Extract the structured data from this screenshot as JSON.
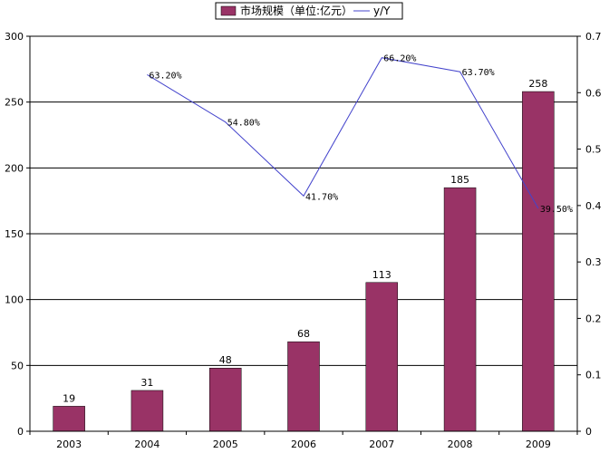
{
  "chart_data": {
    "type": "bar",
    "categories": [
      "2003",
      "2004",
      "2005",
      "2006",
      "2007",
      "2008",
      "2009"
    ],
    "series": [
      {
        "name": "市场规模（单位:亿元）",
        "type": "bar",
        "axis": "left",
        "color": "#993366",
        "values": [
          19,
          31,
          48,
          68,
          113,
          185,
          258
        ],
        "labels": [
          "19",
          "31",
          "48",
          "68",
          "113",
          "185",
          "258"
        ]
      },
      {
        "name": "y/Y",
        "type": "line",
        "axis": "right",
        "color": "#4444cc",
        "values": [
          null,
          0.632,
          0.548,
          0.417,
          0.662,
          0.637,
          0.395
        ],
        "labels": [
          "",
          "63.20%",
          "54.80%",
          "41.70%",
          "66.20%",
          "63.70%",
          "39.50%"
        ]
      }
    ],
    "y_left": {
      "min": 0,
      "max": 300,
      "ticks": [
        "0",
        "50",
        "100",
        "150",
        "200",
        "250",
        "300"
      ]
    },
    "y_right": {
      "min": 0,
      "max": 0.7,
      "ticks": [
        "0",
        "0.1",
        "0.2",
        "0.3",
        "0.4",
        "0.5",
        "0.6",
        "0.7"
      ]
    },
    "grid": true,
    "legend_position": "top"
  }
}
